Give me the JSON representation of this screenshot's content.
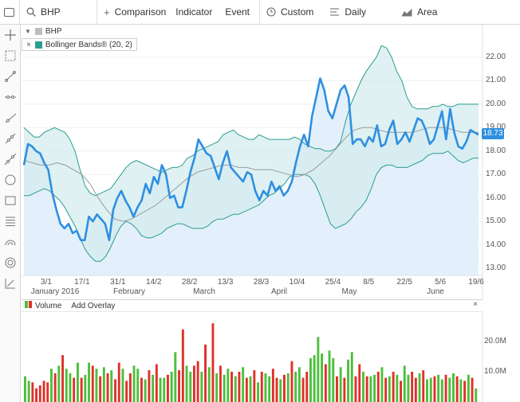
{
  "toolbar": {
    "symbol": "BHP",
    "comparison_label": "Comparison",
    "indicator_label": "Indicator",
    "event_label": "Event",
    "range_label": "Custom",
    "interval_label": "Daily",
    "chart_type_label": "Area",
    "icons": [
      "rectangle-icon",
      "search-icon",
      "plus-icon",
      "clock-icon",
      "interval-icon",
      "area-chart-icon"
    ]
  },
  "sidebar": {
    "tools": [
      "crosshair-icon",
      "zoom-icon",
      "line-icon",
      "horizontal-line-icon",
      "ray-icon",
      "trend-line-icon",
      "extended-line-icon",
      "circle-icon",
      "rectangle-icon",
      "fibonacci-icon",
      "arc-icon",
      "target-icon",
      "ruler-icon"
    ]
  },
  "legend": {
    "symbol_label": "BHP",
    "indicator_label": "Bollinger Bands® (20, 2)",
    "close_glyph": "×",
    "collapse_glyph": "▼"
  },
  "volume_panel": {
    "title": "Volume",
    "add_overlay": "Add Overlay",
    "close_glyph": "×"
  },
  "colors": {
    "price_line": "#2f8fe0",
    "band_fill": "#d4ecee",
    "band_line": "#2a9d8f",
    "area_fill": "#e3f0fb",
    "sma_line": "#9a9a9a",
    "volume_up": "#4cbf3c",
    "volume_down": "#e0302a"
  },
  "chart_data": {
    "type": "line",
    "price_axis": {
      "min": 13.0,
      "max": 22.0,
      "ticks": [
        "22.00",
        "21.00",
        "20.00",
        "19.00",
        "18.00",
        "17.00",
        "16.00",
        "15.00",
        "14.00",
        "13.00"
      ]
    },
    "last_price": "18.73",
    "x_ticks": [
      "3/1",
      "17/1",
      "31/1",
      "14/2",
      "28/2",
      "13/3",
      "28/3",
      "10/4",
      "25/4",
      "8/5",
      "22/5",
      "5/6",
      "19/6"
    ],
    "month_labels": [
      "January 2016",
      "February",
      "March",
      "April",
      "May",
      "June"
    ],
    "series": [
      {
        "name": "BHP",
        "values": [
          17.4,
          18.3,
          18.2,
          18.0,
          17.9,
          17.5,
          17.2,
          16.2,
          15.5,
          14.9,
          14.7,
          14.9,
          14.5,
          14.6,
          14.2,
          14.2,
          15.2,
          15.0,
          15.3,
          15.1,
          14.9,
          14.2,
          15.5,
          16.0,
          16.3,
          15.9,
          15.6,
          15.2,
          15.6,
          15.9,
          16.6,
          16.2,
          16.9,
          16.6,
          17.4,
          17.0,
          16.0,
          16.1,
          15.6,
          15.6,
          16.3,
          17.1,
          17.7,
          18.5,
          18.2,
          17.9,
          17.8,
          17.3,
          16.8,
          17.5,
          18.0,
          17.3,
          17.1,
          16.9,
          16.7,
          17.1,
          17.0,
          16.3,
          15.9,
          16.3,
          16.1,
          16.7,
          16.3,
          16.5,
          16.1,
          16.3,
          16.7,
          17.5,
          18.2,
          18.7,
          18.2,
          19.5,
          20.3,
          21.1,
          20.6,
          19.7,
          19.4,
          20.0,
          20.6,
          20.8,
          20.3,
          18.3,
          18.5,
          18.5,
          18.2,
          18.6,
          18.4,
          19.1,
          18.2,
          18.3,
          18.9,
          19.3,
          18.3,
          18.5,
          18.8,
          18.4,
          18.9,
          19.4,
          19.3,
          18.9,
          18.3,
          18.5,
          19.1,
          19.7,
          18.5,
          19.8,
          18.8,
          18.2,
          18.1,
          18.4,
          18.9,
          18.8,
          18.7
        ]
      },
      {
        "name": "Upper Band",
        "values": [
          19.0,
          18.8,
          18.6,
          18.6,
          18.8,
          18.9,
          19.0,
          18.9,
          18.8,
          18.5,
          18.0,
          17.2,
          16.5,
          16.2,
          16.1,
          16.2,
          16.3,
          16.4,
          16.7,
          17.0,
          17.3,
          17.5,
          17.6,
          17.5,
          17.4,
          17.3,
          17.2,
          17.1,
          17.2,
          17.3,
          17.3,
          17.4,
          17.7,
          17.8,
          18.0,
          18.1,
          18.2,
          18.3,
          18.4,
          18.7,
          18.8,
          18.9,
          18.7,
          18.6,
          18.5,
          18.5,
          18.7,
          18.6,
          18.5,
          18.5,
          18.5,
          18.5,
          18.5,
          18.6,
          18.5,
          18.3,
          18.2,
          18.1,
          18.1,
          18.0,
          18.0,
          18.1,
          18.4,
          19.3,
          20.0,
          20.5,
          21.0,
          21.4,
          21.7,
          22.0,
          22.5,
          22.4,
          22.0,
          21.4,
          21.0,
          20.3,
          19.9,
          19.8,
          19.8,
          19.8,
          19.9,
          19.9,
          20.0,
          19.9,
          19.9,
          20.0,
          20.0,
          20.0,
          20.0,
          20.0
        ]
      },
      {
        "name": "Lower Band",
        "values": [
          16.1,
          16.1,
          16.2,
          16.3,
          16.4,
          16.3,
          16.1,
          15.9,
          15.6,
          15.2,
          14.8,
          14.3,
          13.8,
          13.5,
          13.3,
          13.3,
          13.5,
          13.9,
          14.4,
          14.8,
          15.0,
          14.9,
          14.7,
          14.4,
          14.3,
          14.3,
          14.4,
          14.5,
          14.7,
          14.8,
          14.9,
          14.9,
          14.8,
          14.7,
          14.7,
          14.7,
          14.8,
          15.0,
          15.1,
          15.1,
          15.2,
          15.3,
          15.3,
          15.4,
          15.5,
          15.6,
          15.7,
          15.9,
          16.1,
          16.2,
          16.4,
          16.6,
          16.9,
          17.0,
          17.0,
          17.0,
          16.9,
          16.6,
          16.1,
          15.5,
          14.9,
          14.7,
          14.8,
          14.9,
          15.1,
          15.4,
          15.6,
          15.9,
          16.4,
          17.0,
          17.3,
          17.4,
          17.4,
          17.3,
          17.3,
          17.3,
          17.4,
          17.5,
          17.6,
          17.8,
          17.9,
          17.9,
          17.9,
          18.0,
          17.8,
          17.6,
          17.5,
          17.6,
          17.7,
          17.7
        ]
      },
      {
        "name": "Middle Band",
        "values": [
          17.6,
          17.5,
          17.4,
          17.4,
          17.5,
          17.4,
          17.2,
          17.0,
          16.6,
          16.0,
          15.5,
          15.1,
          15.0,
          15.1,
          15.3,
          15.5,
          15.7,
          16.0,
          16.3,
          16.6,
          16.9,
          17.1,
          17.2,
          17.3,
          17.4,
          17.4,
          17.3,
          17.3,
          17.2,
          17.2,
          17.2,
          17.1,
          17.0,
          16.9,
          17.0,
          17.2,
          17.5,
          17.8,
          18.2,
          18.6,
          18.9,
          19.0,
          19.0,
          18.9,
          18.8,
          18.8,
          18.8,
          18.8,
          18.9,
          19.0,
          19.0,
          19.0,
          18.9,
          18.8,
          18.8,
          18.8
        ]
      },
      {
        "name": "Volume",
        "axis_ticks": [
          "20.0M",
          "10.0M"
        ],
        "values": [
          8.5,
          7.0,
          6.5,
          4.5,
          5.5,
          7.0,
          6.5,
          11.0,
          9.5,
          12.0,
          15.5,
          11.0,
          9.5,
          8.0,
          13.0,
          8.0,
          9.0,
          13.0,
          12.0,
          11.0,
          8.5,
          11.5,
          9.5,
          10.5,
          7.5,
          13.0,
          11.0,
          7.0,
          9.5,
          12.0,
          11.0,
          8.0,
          7.5,
          10.5,
          9.0,
          12.5,
          8.0,
          8.0,
          9.0,
          10.0,
          16.5,
          10.5,
          24.0,
          12.0,
          10.0,
          12.0,
          13.5,
          10.0,
          19.0,
          11.5,
          26.0,
          9.5,
          12.0,
          9.0,
          11.0,
          10.0,
          8.5,
          10.0,
          11.5,
          8.0,
          8.5,
          10.5,
          6.5,
          10.0,
          9.5,
          8.5,
          11.0,
          8.0,
          7.5,
          9.0,
          9.5,
          13.5,
          10.0,
          11.5,
          8.0,
          10.0,
          14.5,
          15.5,
          21.5,
          16.0,
          12.5,
          17.0,
          14.5,
          8.5,
          11.5,
          8.0,
          14.0,
          16.5,
          8.5,
          12.5,
          10.0,
          8.5,
          8.5,
          9.0,
          10.0,
          11.5,
          8.0,
          8.5,
          10.0,
          9.0,
          7.0,
          12.0,
          9.0,
          10.0,
          8.0,
          9.5,
          10.5,
          7.5,
          8.0,
          8.5,
          9.0,
          7.5,
          9.0,
          8.0,
          9.5,
          8.5,
          7.5,
          7.0,
          9.0,
          8.0,
          4.5
        ],
        "up": [
          1,
          1,
          0,
          0,
          0,
          0,
          0,
          1,
          0,
          1,
          0,
          1,
          1,
          0,
          1,
          0,
          1,
          1,
          0,
          1,
          0,
          1,
          0,
          1,
          0,
          0,
          1,
          0,
          0,
          1,
          1,
          0,
          1,
          0,
          1,
          0,
          1,
          1,
          0,
          1,
          1,
          0,
          0,
          1,
          1,
          0,
          0,
          1,
          0,
          1,
          0,
          1,
          0,
          1,
          1,
          0,
          1,
          0,
          1,
          0,
          1,
          0,
          1,
          0,
          1,
          1,
          0,
          0,
          1,
          0,
          1,
          0,
          1,
          1,
          0,
          0,
          1,
          1,
          1,
          1,
          0,
          1,
          1,
          0,
          1,
          0,
          1,
          1,
          0,
          0,
          1,
          0,
          1,
          1,
          0,
          1,
          0,
          1,
          0,
          1,
          0,
          1,
          1,
          0,
          0,
          1,
          0,
          1,
          1,
          0,
          1,
          1,
          0,
          1,
          1,
          0,
          1,
          0,
          1,
          0,
          1
        ]
      }
    ]
  }
}
